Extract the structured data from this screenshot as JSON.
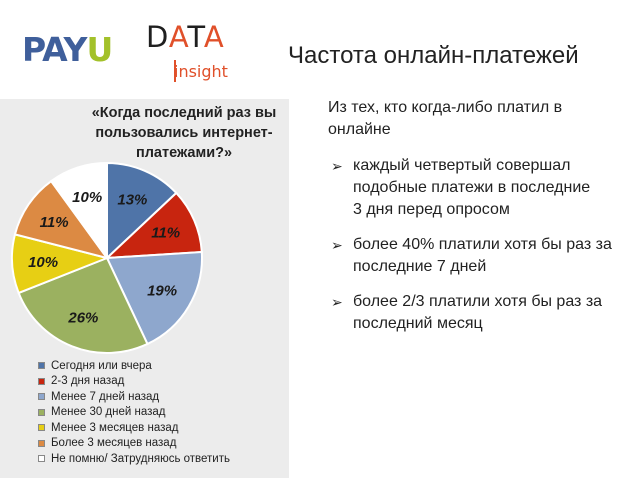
{
  "header": {
    "logo_payu_left": "PAY",
    "logo_payu_right": "U",
    "logo_data_d": "D",
    "logo_data_a1": "A",
    "logo_data_t": "T",
    "logo_data_a2": "A",
    "logo_insight": "insight",
    "title": "Частота онлайн-платежей"
  },
  "text_panel": {
    "intro": "Из тех, кто когда-либо платил в онлайне",
    "bullets": [
      "каждый четвертый совершал подобные платежи в последние\n3 дня перед опросом",
      "более 40% платили хотя бы раз за последние 7 дней",
      "более 2/3 платили хотя бы раз за последний месяц"
    ]
  },
  "colors": {
    "payu_blue": "#3f5f9b",
    "payu_green": "#a3c12a",
    "data_orange": "#e0502a",
    "panel_bg": "#ececec"
  },
  "chart_data": {
    "type": "pie",
    "title": "«Когда последний раз вы пользовались интернет-платежами?»",
    "categories": [
      "Сегодня или вчера",
      "2-3 дня назад",
      "Менее 7 дней назад",
      "Менее 30 дней назад",
      "Менее 3 месяцев назад",
      "Более 3 месяцев назад",
      "Не помню/ Затрудняюсь ответить"
    ],
    "values": [
      13,
      11,
      19,
      26,
      10,
      11,
      10
    ],
    "labels": [
      "13%",
      "11%",
      "19%",
      "26%",
      "10%",
      "11%",
      "10%"
    ],
    "colors": [
      "#4f74a8",
      "#c8250f",
      "#8ea7cd",
      "#9bb160",
      "#e7cf14",
      "#dc8a43",
      "#ffffff"
    ],
    "label_colors": [
      "#1a1a1a",
      "#1a1a1a",
      "#1a1a1a",
      "#1a1a1a",
      "#1a1a1a",
      "#1a1a1a",
      "#1a1a1a"
    ],
    "legend_position": "bottom-left",
    "start_angle_deg": 0,
    "direction": "clockwise"
  }
}
